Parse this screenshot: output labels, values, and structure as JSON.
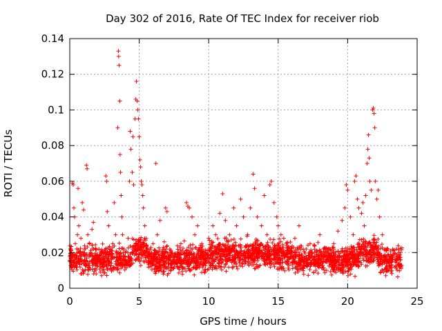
{
  "chart_data": {
    "type": "scatter",
    "title": "Day 302 of 2016, Rate Of TEC Index for receiver riob",
    "xlabel": "GPS time / hours",
    "ylabel": "ROTI / TECUs",
    "xlim": [
      0,
      25
    ],
    "ylim": [
      0,
      0.14
    ],
    "xticks": [
      0,
      5,
      10,
      15,
      20,
      25
    ],
    "xtick_labels": [
      "0",
      "5",
      "10",
      "15",
      "20",
      "25"
    ],
    "yticks": [
      0,
      0.02,
      0.04,
      0.06,
      0.08,
      0.1,
      0.12,
      0.14
    ],
    "ytick_labels": [
      "0",
      "0.02",
      "0.04",
      "0.06",
      "0.08",
      "0.1",
      "0.12",
      "0.14"
    ],
    "grid": true,
    "marker": "+",
    "marker_color": "#ff0000",
    "series": [
      {
        "name": "ROTI",
        "points": [
          [
            0.0,
            0.015
          ],
          [
            0.1,
            0.022
          ],
          [
            0.15,
            0.012
          ],
          [
            0.2,
            0.059
          ],
          [
            0.25,
            0.058
          ],
          [
            0.3,
            0.045
          ],
          [
            0.35,
            0.04
          ],
          [
            0.4,
            0.025
          ],
          [
            0.45,
            0.018
          ],
          [
            0.5,
            0.014
          ],
          [
            0.55,
            0.03
          ],
          [
            0.6,
            0.056
          ],
          [
            0.65,
            0.035
          ],
          [
            0.7,
            0.02
          ],
          [
            0.8,
            0.028
          ],
          [
            0.9,
            0.048
          ],
          [
            1.0,
            0.044
          ],
          [
            1.05,
            0.022
          ],
          [
            1.1,
            0.018
          ],
          [
            1.2,
            0.069
          ],
          [
            1.25,
            0.067
          ],
          [
            1.3,
            0.03
          ],
          [
            1.4,
            0.025
          ],
          [
            1.5,
            0.02
          ],
          [
            1.6,
            0.033
          ],
          [
            1.7,
            0.037
          ],
          [
            1.8,
            0.018
          ],
          [
            1.9,
            0.014
          ],
          [
            2.0,
            0.016
          ],
          [
            2.1,
            0.022
          ],
          [
            2.2,
            0.012
          ],
          [
            2.3,
            0.02
          ],
          [
            2.4,
            0.018
          ],
          [
            2.5,
            0.015
          ],
          [
            2.6,
            0.063
          ],
          [
            2.65,
            0.06
          ],
          [
            2.7,
            0.043
          ],
          [
            2.8,
            0.035
          ],
          [
            2.9,
            0.02
          ],
          [
            3.0,
            0.014
          ],
          [
            3.1,
            0.025
          ],
          [
            3.2,
            0.048
          ],
          [
            3.3,
            0.03
          ],
          [
            3.4,
            0.02
          ],
          [
            3.45,
            0.09
          ],
          [
            3.5,
            0.133
          ],
          [
            3.52,
            0.13
          ],
          [
            3.55,
            0.125
          ],
          [
            3.6,
            0.105
          ],
          [
            3.62,
            0.075
          ],
          [
            3.65,
            0.065
          ],
          [
            3.7,
            0.052
          ],
          [
            3.75,
            0.04
          ],
          [
            3.8,
            0.03
          ],
          [
            3.9,
            0.022
          ],
          [
            4.0,
            0.018
          ],
          [
            4.1,
            0.015
          ],
          [
            4.2,
            0.028
          ],
          [
            4.3,
            0.06
          ],
          [
            4.35,
            0.088
          ],
          [
            4.4,
            0.078
          ],
          [
            4.5,
            0.065
          ],
          [
            4.55,
            0.085
          ],
          [
            4.6,
            0.058
          ],
          [
            4.7,
            0.095
          ],
          [
            4.75,
            0.106
          ],
          [
            4.8,
            0.116
          ],
          [
            4.85,
            0.105
          ],
          [
            4.9,
            0.1
          ],
          [
            4.95,
            0.095
          ],
          [
            5.0,
            0.085
          ],
          [
            5.05,
            0.072
          ],
          [
            5.1,
            0.068
          ],
          [
            5.15,
            0.06
          ],
          [
            5.2,
            0.058
          ],
          [
            5.25,
            0.052
          ],
          [
            5.3,
            0.045
          ],
          [
            5.4,
            0.035
          ],
          [
            5.5,
            0.028
          ],
          [
            5.6,
            0.022
          ],
          [
            5.7,
            0.018
          ],
          [
            5.8,
            0.014
          ],
          [
            5.9,
            0.02
          ],
          [
            6.0,
            0.025
          ],
          [
            6.2,
            0.07
          ],
          [
            6.3,
            0.03
          ],
          [
            6.5,
            0.038
          ],
          [
            6.7,
            0.02
          ],
          [
            6.9,
            0.045
          ],
          [
            7.0,
            0.043
          ],
          [
            7.2,
            0.022
          ],
          [
            7.5,
            0.015
          ],
          [
            7.7,
            0.018
          ],
          [
            8.0,
            0.025
          ],
          [
            8.2,
            0.02
          ],
          [
            8.4,
            0.048
          ],
          [
            8.5,
            0.046
          ],
          [
            8.6,
            0.045
          ],
          [
            8.8,
            0.04
          ],
          [
            9.0,
            0.03
          ],
          [
            9.2,
            0.035
          ],
          [
            9.5,
            0.025
          ],
          [
            9.8,
            0.02
          ],
          [
            10.0,
            0.028
          ],
          [
            10.3,
            0.035
          ],
          [
            10.5,
            0.03
          ],
          [
            10.8,
            0.042
          ],
          [
            11.0,
            0.053
          ],
          [
            11.2,
            0.038
          ],
          [
            11.5,
            0.03
          ],
          [
            11.8,
            0.045
          ],
          [
            12.0,
            0.035
          ],
          [
            12.3,
            0.05
          ],
          [
            12.5,
            0.04
          ],
          [
            12.8,
            0.03
          ],
          [
            13.0,
            0.045
          ],
          [
            13.2,
            0.064
          ],
          [
            13.3,
            0.056
          ],
          [
            13.5,
            0.04
          ],
          [
            13.8,
            0.035
          ],
          [
            14.0,
            0.052
          ],
          [
            14.2,
            0.03
          ],
          [
            14.4,
            0.058
          ],
          [
            14.5,
            0.06
          ],
          [
            14.7,
            0.048
          ],
          [
            14.9,
            0.04
          ],
          [
            15.0,
            0.035
          ],
          [
            15.2,
            0.03
          ],
          [
            15.4,
            0.028
          ],
          [
            15.6,
            0.024
          ],
          [
            15.9,
            0.02
          ],
          [
            16.2,
            0.028
          ],
          [
            16.5,
            0.035
          ],
          [
            16.8,
            0.022
          ],
          [
            17.0,
            0.018
          ],
          [
            17.3,
            0.025
          ],
          [
            17.6,
            0.02
          ],
          [
            18.0,
            0.03
          ],
          [
            18.3,
            0.022
          ],
          [
            18.6,
            0.02
          ],
          [
            19.0,
            0.025
          ],
          [
            19.3,
            0.032
          ],
          [
            19.6,
            0.038
          ],
          [
            19.8,
            0.045
          ],
          [
            19.9,
            0.058
          ],
          [
            20.0,
            0.055
          ],
          [
            20.2,
            0.04
          ],
          [
            20.4,
            0.03
          ],
          [
            20.5,
            0.06
          ],
          [
            20.6,
            0.063
          ],
          [
            20.7,
            0.05
          ],
          [
            20.8,
            0.045
          ],
          [
            21.0,
            0.042
          ],
          [
            21.1,
            0.048
          ],
          [
            21.2,
            0.035
          ],
          [
            21.3,
            0.052
          ],
          [
            21.4,
            0.07
          ],
          [
            21.45,
            0.078
          ],
          [
            21.5,
            0.086
          ],
          [
            21.55,
            0.073
          ],
          [
            21.6,
            0.06
          ],
          [
            21.7,
            0.055
          ],
          [
            21.8,
            0.1
          ],
          [
            21.85,
            0.101
          ],
          [
            21.9,
            0.098
          ],
          [
            21.95,
            0.09
          ],
          [
            22.0,
            0.06
          ],
          [
            22.1,
            0.05
          ],
          [
            22.2,
            0.055
          ],
          [
            22.3,
            0.04
          ],
          [
            22.5,
            0.03
          ],
          [
            22.7,
            0.022
          ],
          [
            23.0,
            0.018
          ],
          [
            23.2,
            0.015
          ],
          [
            23.4,
            0.012
          ],
          [
            23.6,
            0.016
          ],
          [
            23.8,
            0.02
          ]
        ]
      }
    ],
    "dense_band": {
      "description": "dense background cloud of points across 0-24 hours",
      "x_range": [
        0,
        23.9
      ],
      "y_range": [
        0.004,
        0.03
      ]
    }
  }
}
